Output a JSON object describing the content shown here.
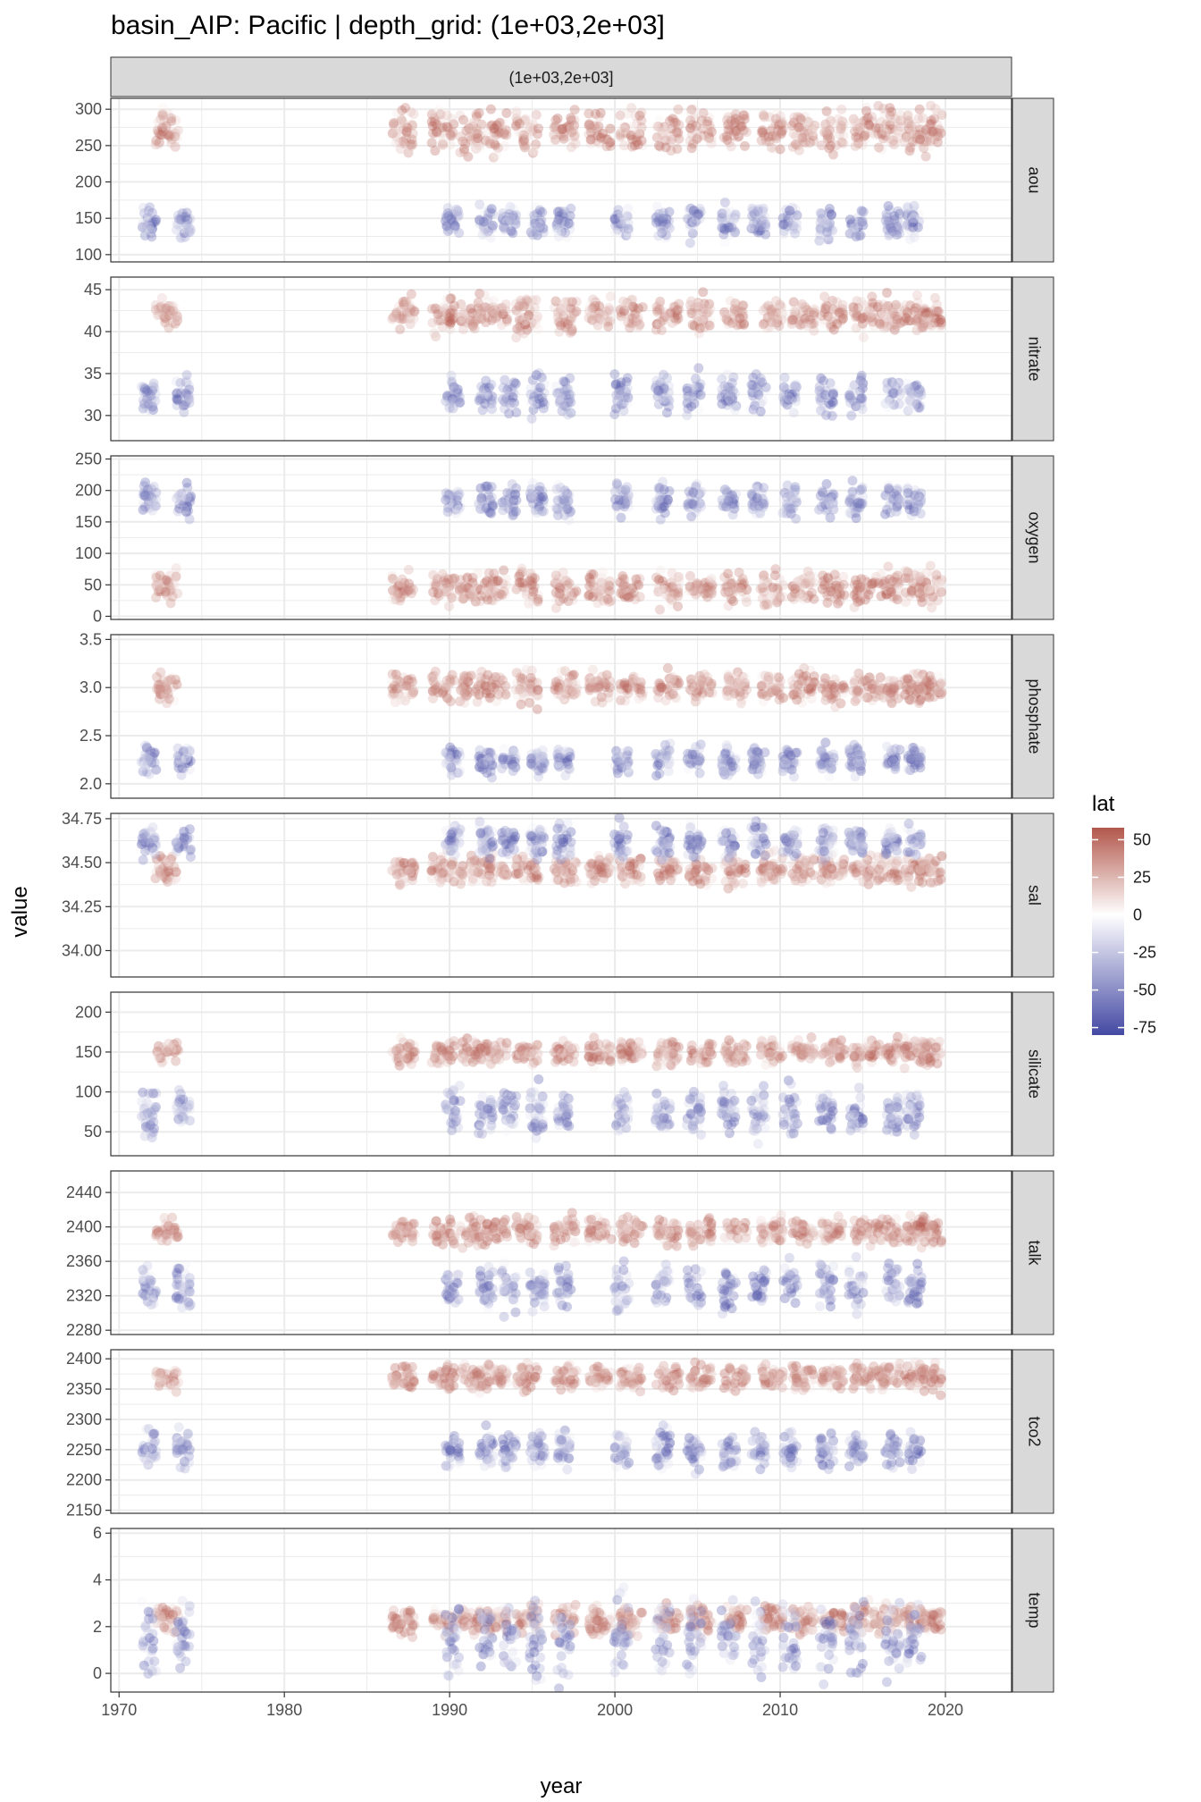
{
  "chart_data": {
    "type": "scatter",
    "title": "basin_AIP: Pacific | depth_grid: (1e+03,2e+03]",
    "column_strip": "(1e+03,2e+03]",
    "xlabel": "year",
    "ylabel": "value",
    "xlim": [
      1969.5,
      2024
    ],
    "x_ticks": [
      1970,
      1980,
      1990,
      2000,
      2010,
      2020
    ],
    "x_tick_labels": [
      "1970",
      "1980",
      "1990",
      "2000",
      "2010",
      "2020"
    ],
    "colors": {
      "high": "#b2574b",
      "mid": "#ffffff",
      "low": "#4449a3",
      "strip_fill": "#d9d9d9",
      "grid": "#ebebeb",
      "panel_border": "#333333"
    },
    "legend": {
      "title": "lat",
      "placement": "right",
      "limits": [
        -80,
        58
      ],
      "breaks": [
        50,
        25,
        0,
        -25,
        -50,
        -75
      ],
      "break_labels": [
        "50",
        "25",
        "0",
        "-25",
        "-50",
        "-75"
      ]
    },
    "panels": [
      {
        "name": "aou",
        "ylim": [
          90,
          315
        ],
        "ticks": [
          100,
          150,
          200,
          250,
          300
        ],
        "tick_labels": [
          "100",
          "150",
          "200",
          "250",
          "300"
        ],
        "south_mean": 145,
        "south_spread": 22,
        "north_mean": 270,
        "north_spread": 28
      },
      {
        "name": "nitrate",
        "ylim": [
          27,
          46.5
        ],
        "ticks": [
          30,
          35,
          40,
          45
        ],
        "tick_labels": [
          "30",
          "35",
          "40",
          "45"
        ],
        "south_mean": 32.5,
        "south_spread": 2.2,
        "north_mean": 42,
        "north_spread": 2.0
      },
      {
        "name": "oxygen",
        "ylim": [
          -5,
          255
        ],
        "ticks": [
          0,
          50,
          100,
          150,
          200,
          250
        ],
        "tick_labels": [
          "0",
          "50",
          "100",
          "150",
          "200",
          "250"
        ],
        "south_mean": 185,
        "south_spread": 25,
        "north_mean": 45,
        "north_spread": 25
      },
      {
        "name": "phosphate",
        "ylim": [
          1.85,
          3.55
        ],
        "ticks": [
          2.0,
          2.5,
          3.0,
          3.5
        ],
        "tick_labels": [
          "2.0",
          "2.5",
          "3.0",
          "3.5"
        ],
        "south_mean": 2.25,
        "south_spread": 0.15,
        "north_mean": 3.0,
        "north_spread": 0.15
      },
      {
        "name": "sal",
        "ylim": [
          33.85,
          34.78
        ],
        "ticks": [
          34.0,
          34.25,
          34.5,
          34.75
        ],
        "tick_labels": [
          "34.00",
          "34.25",
          "34.50",
          "34.75"
        ],
        "south_mean": 34.62,
        "south_spread": 0.09,
        "north_mean": 34.46,
        "north_spread": 0.08
      },
      {
        "name": "silicate",
        "ylim": [
          20,
          225
        ],
        "ticks": [
          50,
          100,
          150,
          200
        ],
        "tick_labels": [
          "50",
          "100",
          "150",
          "200"
        ],
        "south_mean": 75,
        "south_spread": 30,
        "north_mean": 150,
        "north_spread": 15
      },
      {
        "name": "talk",
        "ylim": [
          2275,
          2465
        ],
        "ticks": [
          2280,
          2320,
          2360,
          2400,
          2440
        ],
        "tick_labels": [
          "2280",
          "2320",
          "2360",
          "2400",
          "2440"
        ],
        "south_mean": 2330,
        "south_spread": 25,
        "north_mean": 2395,
        "north_spread": 15
      },
      {
        "name": "tco2",
        "ylim": [
          2145,
          2415
        ],
        "ticks": [
          2150,
          2200,
          2250,
          2300,
          2350,
          2400
        ],
        "tick_labels": [
          "2150",
          "2200",
          "2250",
          "2300",
          "2350",
          "2400"
        ],
        "south_mean": 2250,
        "south_spread": 30,
        "north_mean": 2370,
        "north_spread": 20
      },
      {
        "name": "temp",
        "ylim": [
          -0.8,
          6.2
        ],
        "ticks": [
          0,
          2,
          4,
          6
        ],
        "tick_labels": [
          "0",
          "2",
          "4",
          "6"
        ],
        "south_mean": 1.5,
        "south_spread": 1.6,
        "north_mean": 2.3,
        "north_spread": 0.6
      }
    ],
    "cruise_years_south": [
      1971.8,
      1973.9,
      1990.2,
      1992.2,
      1993.6,
      1995.3,
      1996.9,
      2000.4,
      2002.9,
      2004.8,
      2006.9,
      2008.7,
      2010.6,
      2012.8,
      2014.6,
      2016.8,
      2018.1
    ],
    "cruise_years_north": [
      1972.9,
      1987.2,
      1989.6,
      1991.3,
      1992.8,
      1994.7,
      1997.0,
      1999.1,
      2001.0,
      2003.2,
      2005.2,
      2007.3,
      2009.5,
      2011.4,
      2013.2,
      2015.1,
      2016.6,
      2018.2,
      2019.1
    ]
  }
}
